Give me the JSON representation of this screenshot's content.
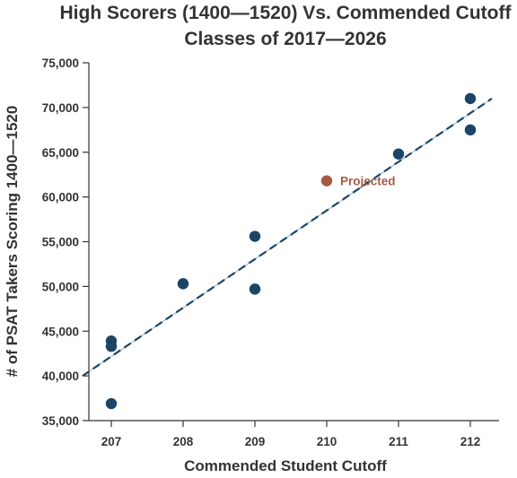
{
  "chart_data": {
    "type": "scatter",
    "title_lines": [
      "High Scorers (1400—1520) Vs. Commended Cutoff",
      "Classes of 2017—2026"
    ],
    "xlabel": "Commended Student Cutoff",
    "ylabel": "# of PSAT Takers Scoring 1400—1520",
    "xlim": [
      206.6,
      212.4
    ],
    "ylim": [
      35000,
      75000
    ],
    "x_ticks": [
      207,
      208,
      209,
      210,
      211,
      212
    ],
    "y_ticks": [
      35000,
      40000,
      45000,
      50000,
      55000,
      60000,
      65000,
      70000,
      75000
    ],
    "y_tick_labels": [
      "35,000",
      "40,000",
      "45,000",
      "50,000",
      "55,000",
      "60,000",
      "65,000",
      "70,000",
      "75,000"
    ],
    "x_tick_labels": [
      "207",
      "208",
      "209",
      "210",
      "211",
      "212"
    ],
    "grid": false,
    "series": [
      {
        "color": "#1b4566",
        "points": [
          {
            "x": 207,
            "y": 43900
          },
          {
            "x": 207,
            "y": 43300
          },
          {
            "x": 207,
            "y": 36900
          },
          {
            "x": 208,
            "y": 50300
          },
          {
            "x": 209,
            "y": 55600
          },
          {
            "x": 209,
            "y": 49700
          },
          {
            "x": 211,
            "y": 64800
          },
          {
            "x": 212,
            "y": 71000
          },
          {
            "x": 212,
            "y": 67500
          }
        ]
      },
      {
        "name": "Projected",
        "color": "#a65a43",
        "points": [
          {
            "x": 210,
            "y": 61800
          }
        ]
      }
    ],
    "trendline": {
      "start": {
        "x": 206.6,
        "y": 40000
      },
      "end": {
        "x": 212.3,
        "y": 71000
      },
      "color": "#1b4566",
      "style": "dashed"
    },
    "annotations": [
      {
        "text": "Projected",
        "x": 210,
        "y": 61800,
        "color": "#a65a43"
      }
    ]
  }
}
